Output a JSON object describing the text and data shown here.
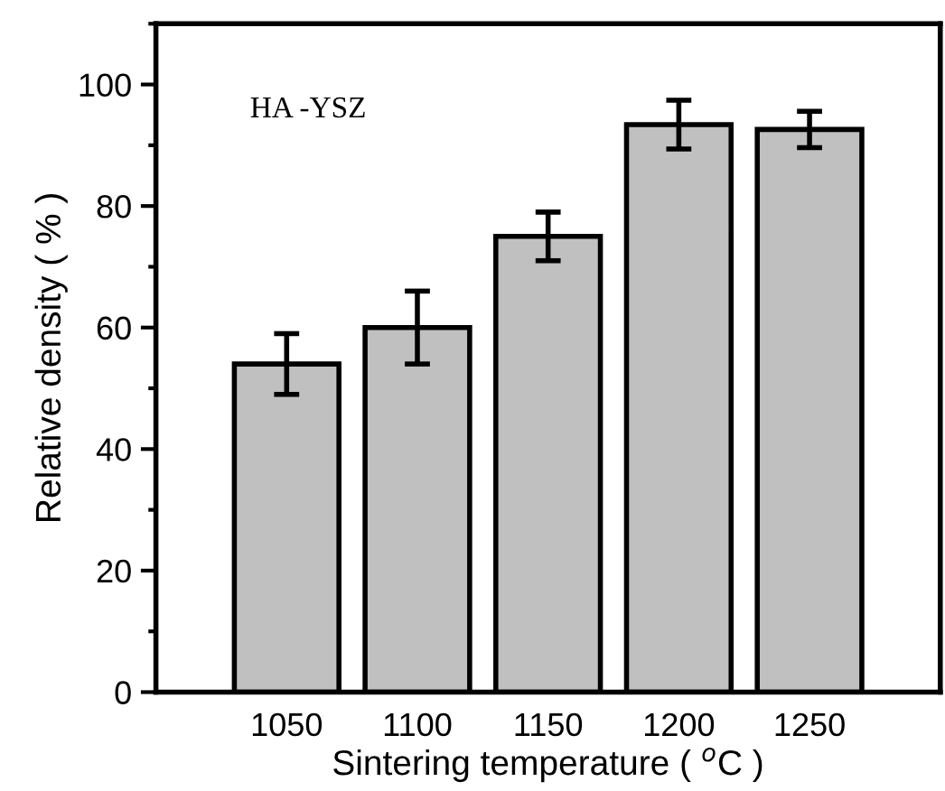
{
  "chart_data": {
    "type": "bar",
    "xlabel": "Sintering temperature ( $^{o}$C )",
    "ylabel": "Relative density ( % )",
    "categories": [
      "1050",
      "1100",
      "1150",
      "1200",
      "1250"
    ],
    "values": [
      54,
      60,
      75,
      93.4,
      92.6
    ],
    "errors": [
      5,
      6,
      4,
      4,
      3
    ],
    "color": "#c0c0c0",
    "ylim": [
      0,
      110
    ],
    "yticks": [
      0,
      20,
      40,
      60,
      80,
      100
    ],
    "annotations": [
      "HA -YSZ"
    ],
    "grid": false
  }
}
